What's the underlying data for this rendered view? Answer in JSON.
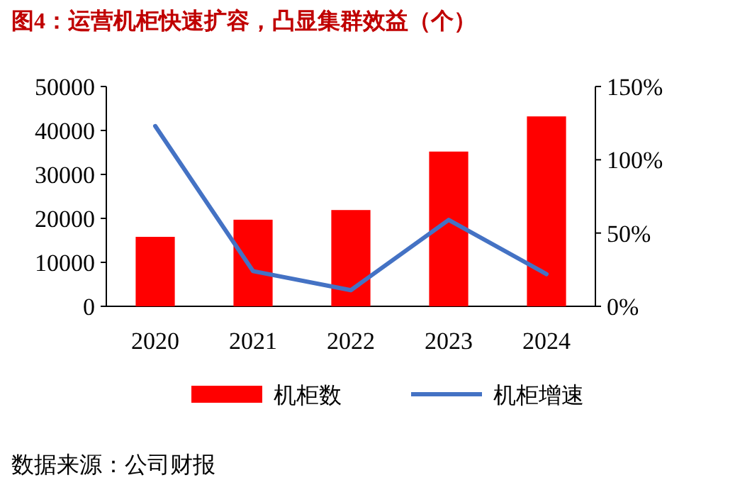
{
  "chart_data": {
    "type": "bar",
    "title": "图4：运营机柜快速扩容，凸显集群效益（个）",
    "categories": [
      "2020",
      "2021",
      "2022",
      "2023",
      "2024"
    ],
    "series": [
      {
        "name": "机柜数",
        "color": "#ff0000",
        "values": [
          15800,
          19700,
          21900,
          35200,
          43200
        ]
      },
      {
        "name": "机柜增速",
        "type": "line",
        "color": "#4472c4",
        "axis": "y2",
        "values": [
          123,
          24,
          11,
          59,
          22
        ]
      }
    ],
    "ylim": [
      0,
      50000
    ],
    "yticks": [
      0,
      10000,
      20000,
      30000,
      40000,
      50000
    ],
    "y2lim": [
      0,
      150
    ],
    "y2ticks": [
      {
        "value": 0,
        "label": "0%"
      },
      {
        "value": 50,
        "label": "50%"
      },
      {
        "value": 100,
        "label": "100%"
      },
      {
        "value": 150,
        "label": "150%"
      }
    ],
    "grid": false,
    "legend": "bottom",
    "marker": "none",
    "line_style": "solid",
    "annotations": [
      "数据来源：公司财报"
    ]
  }
}
